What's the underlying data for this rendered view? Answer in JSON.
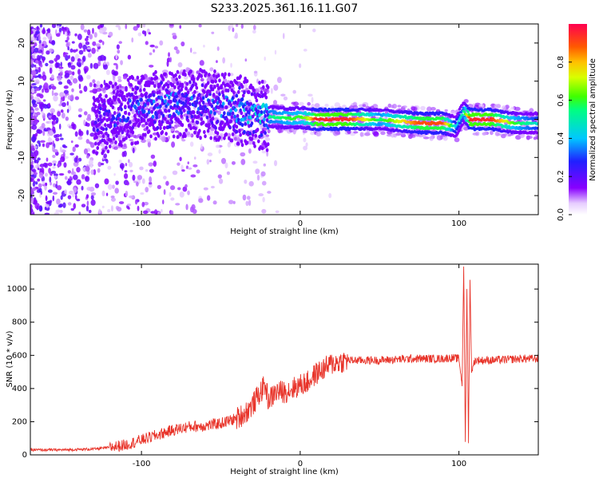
{
  "title": "S233.2025.361.16.11.G07",
  "chart_data": [
    {
      "type": "heatmap",
      "title": "S233.2025.361.16.11.G07",
      "xlabel": "Height of straight line (km)",
      "ylabel": "Frequency (Hz)",
      "xlim": [
        -170,
        150
      ],
      "ylim": [
        -25,
        25
      ],
      "x_ticks": [
        -100,
        0,
        100
      ],
      "y_ticks": [
        -20,
        -10,
        0,
        10,
        20
      ],
      "colorbar": {
        "label": "Normalized spectral amplitude",
        "range": [
          0,
          1
        ],
        "ticks": [
          "0.0",
          "0.2",
          "0.4",
          "0.6",
          "0.8"
        ]
      },
      "ridge": {
        "description_points_x": [
          -125,
          -100,
          -80,
          -60,
          -45,
          -35,
          -25,
          -15,
          -5,
          0,
          5,
          10,
          30,
          50,
          75,
          90,
          98,
          103,
          107,
          120,
          135,
          150
        ],
        "frequency": [
          0,
          3,
          4,
          4,
          3,
          2,
          1,
          0.5,
          0.3,
          0.5,
          0.2,
          0,
          0,
          0,
          -1,
          -1,
          -2,
          2,
          0,
          0,
          -1,
          -1
        ],
        "amplitude": [
          0.3,
          0.35,
          0.4,
          0.35,
          0.4,
          0.45,
          0.5,
          0.55,
          0.6,
          0.6,
          0.7,
          0.95,
          0.95,
          0.55,
          0.9,
          0.9,
          0.4,
          0.5,
          0.95,
          0.95,
          0.6,
          0.45
        ]
      }
    },
    {
      "type": "line",
      "xlabel": "Height of straight line (km)",
      "ylabel": "SNR (10 * v/v)",
      "xlim": [
        -170,
        150
      ],
      "ylim": [
        0,
        1150
      ],
      "x_ticks": [
        -100,
        0,
        100
      ],
      "y_ticks": [
        0,
        200,
        400,
        600,
        800,
        1000
      ],
      "color": "#e8342a",
      "series": [
        {
          "x": [
            -170,
            -150,
            -130,
            -120,
            -110,
            -100,
            -90,
            -80,
            -70,
            -60,
            -50,
            -40,
            -35,
            -30,
            -25,
            -22,
            -20,
            -15,
            -10,
            -5,
            0,
            5,
            10,
            15,
            20,
            25,
            30,
            40,
            50,
            60,
            70,
            80,
            90,
            95,
            100,
            102,
            103,
            104,
            105,
            106,
            107,
            108,
            110,
            120,
            130,
            140,
            150
          ],
          "y": [
            30,
            30,
            35,
            45,
            60,
            90,
            120,
            150,
            170,
            175,
            190,
            220,
            250,
            300,
            380,
            420,
            330,
            380,
            380,
            400,
            420,
            440,
            490,
            520,
            550,
            560,
            570,
            570,
            570,
            575,
            580,
            580,
            580,
            585,
            580,
            420,
            1140,
            80,
            1000,
            80,
            1050,
            500,
            570,
            570,
            575,
            580,
            580
          ]
        }
      ]
    }
  ]
}
